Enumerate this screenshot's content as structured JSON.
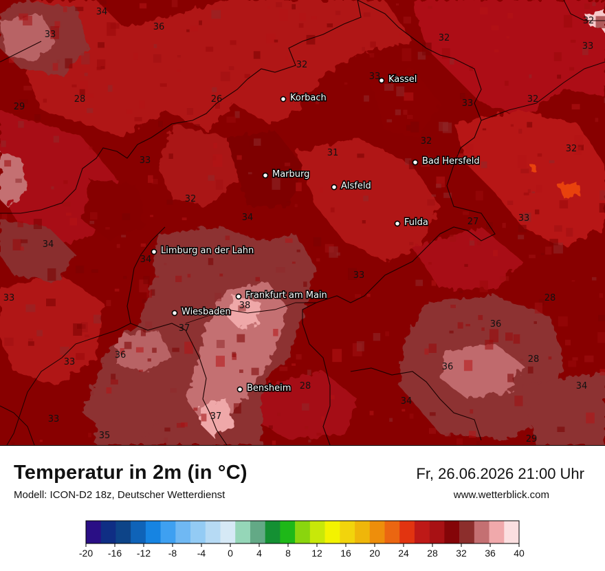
{
  "header": {
    "title": "Temperatur in 2m (in °C)",
    "model": "Modell: ICON-D2 18z, Deutscher Wetterdienst",
    "datetime": "Fr, 26.06.2026 21:00 Uhr",
    "website": "www.wetterblick.com"
  },
  "cities": [
    {
      "name": "Kassel"
    },
    {
      "name": "Korbach"
    },
    {
      "name": "Bad Hersfeld"
    },
    {
      "name": "Marburg"
    },
    {
      "name": "Alsfeld"
    },
    {
      "name": "Fulda"
    },
    {
      "name": "Limburg an der Lahn"
    },
    {
      "name": "Frankfurt am Main"
    },
    {
      "name": "Wiesbaden"
    },
    {
      "name": "Bensheim"
    }
  ],
  "value_labels": [
    "34",
    "33",
    "36",
    "33",
    "32",
    "32",
    "33",
    "33",
    "26",
    "28",
    "29",
    "33",
    "32",
    "31",
    "32",
    "32",
    "32",
    "33",
    "32",
    "34",
    "34",
    "34",
    "33",
    "27",
    "33",
    "33",
    "28",
    "38",
    "37",
    "36",
    "36",
    "33",
    "36",
    "28",
    "28",
    "36",
    "34",
    "37",
    "33",
    "35",
    "34",
    "29"
  ],
  "legend": {
    "ticks": [
      "-20",
      "-16",
      "-12",
      "-8",
      "-4",
      "0",
      "4",
      "8",
      "12",
      "16",
      "20",
      "24",
      "28",
      "32",
      "36",
      "40"
    ],
    "colors": [
      "#2a0f85",
      "#0f2e84",
      "#0d4488",
      "#0f63b8",
      "#1684e2",
      "#3ea0f1",
      "#6fb8f3",
      "#93cbf4",
      "#b6daf4",
      "#d6e9f6",
      "#95d6b8",
      "#63a986",
      "#149033",
      "#1eb818",
      "#8ad50e",
      "#c8e809",
      "#f3f300",
      "#f2d40c",
      "#efb60a",
      "#ee8e0b",
      "#eb6611",
      "#e23410",
      "#be1917",
      "#a81114",
      "#840508",
      "#8c2e2c",
      "#c47072",
      "#f0a9ab",
      "#fbdfe0"
    ]
  },
  "colors": {
    "map_base": "#8b0000",
    "warm_red": "#b11114",
    "hot_red": "#c2181a",
    "mauve": "#8d3032",
    "pink": "#c47072",
    "light_pink": "#efa8a9",
    "orange_spot": "#e8420f"
  }
}
